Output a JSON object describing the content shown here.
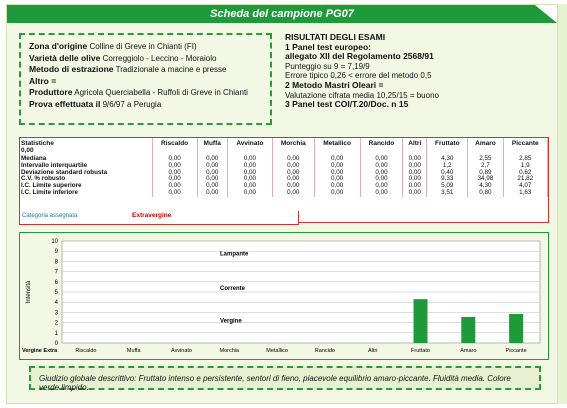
{
  "title": "Scheda del campione PG07",
  "info": {
    "zona_label": "Zona d'origine",
    "zona_value": "Colline di Greve in Chianti (FI)",
    "varieta_label": "Varietà delle olive",
    "varieta_value": "Correggiolo - Leccino - Moraiolo",
    "metodo_label": "Metodo di estrazione",
    "metodo_value": "Tradizionale a macine e presse",
    "altro_label": "Altro =",
    "produttore_label": "Produttore",
    "produttore_value": "Agricola Querciabella - Ruffoli di Greve in Chianti",
    "prova_label": "Prova effettuata il",
    "prova_value": "9/6/97 a Perugia"
  },
  "results": {
    "header": "RISULTATI DEGLI ESAMI",
    "line1": "1 Panel test europeo:",
    "line2": "allegato XII del Regolamento 2568/91",
    "line3": "Punteggio su 9 = 7,19/9",
    "line4": "Errore tipico 0,26 < errore del metodo 0,5",
    "line5": "2 Metodo Mastri Oleari =",
    "line6": "Valutazione cifrata media 10,25/15 = buono",
    "line7": "3 Panel test COI/T.20/Doc. n 15"
  },
  "table": {
    "corner": "Statistiche",
    "corner_sub": "0,00",
    "columns": [
      "Riscaldo",
      "Muffa",
      "Avvinato",
      "Morchia",
      "Metallico",
      "Rancido",
      "Altri",
      "Fruttato",
      "Amaro",
      "Piccante"
    ],
    "rows": [
      {
        "label": "Mediana",
        "values": [
          "0,00",
          "0,00",
          "0,00",
          "0,00",
          "0,00",
          "0,00",
          "0,00",
          "4,30",
          "2,55",
          "2,85"
        ]
      },
      {
        "label": "Intervallo interquartile",
        "values": [
          "0,00",
          "0,00",
          "0,00",
          "0,00",
          "0,00",
          "0,00",
          "0,00",
          "1,2",
          "2,7",
          "1,9"
        ]
      },
      {
        "label": "Deviazione standard robusta",
        "values": [
          "0,00",
          "0,00",
          "0,00",
          "0,00",
          "0,00",
          "0,00",
          "0,00",
          "0,40",
          "0,89",
          "0,62"
        ]
      },
      {
        "label": "C.V. % robusto",
        "values": [
          "0,00",
          "0,00",
          "0,00",
          "0,00",
          "0,00",
          "0,00",
          "0,00",
          "9,33",
          "34,98",
          "21,82"
        ]
      },
      {
        "label": "I.C. Limite superiore",
        "values": [
          "0,00",
          "0,00",
          "0,00",
          "0,00",
          "0,00",
          "0,00",
          "0,00",
          "5,09",
          "4,30",
          "4,07"
        ]
      },
      {
        "label": "I.C. Limite inferiore",
        "values": [
          "0,00",
          "0,00",
          "0,00",
          "0,00",
          "0,00",
          "0,00",
          "0,00",
          "3,51",
          "0,80",
          "1,63"
        ]
      }
    ],
    "category_label": "Categoria assegnata",
    "category_value": "Extravergine"
  },
  "chart_data": {
    "type": "bar",
    "categories": [
      "Riscaldo",
      "Muffa",
      "Avvinato",
      "Morchia",
      "Metallico",
      "Rancido",
      "Altri",
      "Fruttato",
      "Amaro",
      "Piccante"
    ],
    "values": [
      0,
      0,
      0,
      0,
      0,
      0,
      0,
      4.3,
      2.55,
      2.85
    ],
    "ylabel": "Intensità",
    "ylim": [
      0,
      10
    ],
    "yticks": [
      "0",
      "1",
      "2",
      "3",
      "4",
      "5",
      "6",
      "7",
      "8",
      "9",
      "10"
    ],
    "zones": [
      "Lampante",
      "Corrente",
      "Vergine"
    ],
    "baseline_label": "Vergine Extra",
    "bar_color": "#1f9a3a",
    "grid": true
  },
  "global": {
    "label": "Giudizio globale descrittivo:",
    "text": "Fruttato intenso e persistente, sentori di fieno, piacevole equilibrio amaro-piccante. Fluidità media. Colore verde limpido."
  }
}
